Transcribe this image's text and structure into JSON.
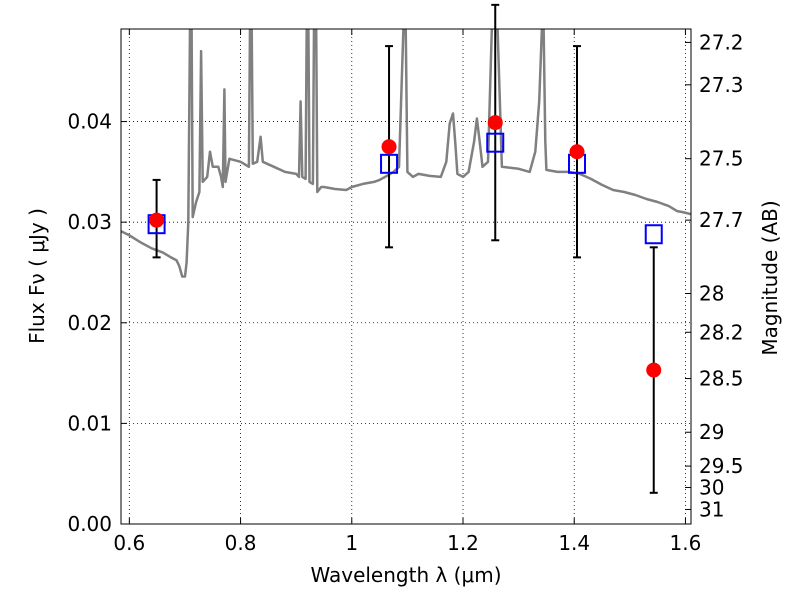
{
  "chart_data": {
    "type": "scatter",
    "xlabel": "Wavelength  λ (μm)",
    "ylabel": "Flux  Fν  ( μJy )",
    "y2label": "Magnitude (AB)",
    "xlim": [
      0.585,
      1.61
    ],
    "ylim": [
      0.0,
      0.0492
    ],
    "xticks": [
      {
        "v": 0.6,
        "label": "0.6"
      },
      {
        "v": 0.8,
        "label": "0.8"
      },
      {
        "v": 1.0,
        "label": "1"
      },
      {
        "v": 1.2,
        "label": "1.2"
      },
      {
        "v": 1.4,
        "label": "1.4"
      },
      {
        "v": 1.6,
        "label": "1.6"
      }
    ],
    "yticks": [
      {
        "v": 0.0,
        "label": "0.00"
      },
      {
        "v": 0.01,
        "label": "0.01"
      },
      {
        "v": 0.02,
        "label": "0.02"
      },
      {
        "v": 0.03,
        "label": "0.03"
      },
      {
        "v": 0.04,
        "label": "0.04"
      }
    ],
    "magnitude_ticks": [
      {
        "mag": 27.2,
        "label": "27.2"
      },
      {
        "mag": 27.3,
        "label": "27.3"
      },
      {
        "mag": 27.5,
        "label": "27.5"
      },
      {
        "mag": 27.7,
        "label": "27.7"
      },
      {
        "mag": 28.0,
        "label": "28"
      },
      {
        "mag": 28.2,
        "label": "28.2"
      },
      {
        "mag": 28.5,
        "label": "28.5"
      },
      {
        "mag": 29.0,
        "label": "29"
      },
      {
        "mag": 29.5,
        "label": "29.5"
      },
      {
        "mag": 30.0,
        "label": "30"
      },
      {
        "mag": 31.0,
        "label": "31"
      }
    ],
    "grid": "dotted",
    "colors": {
      "observed": "#ff0000",
      "model": "#0000ff",
      "errorbar": "#000000",
      "spectrum": "#808080"
    },
    "observed_points": [
      {
        "x": 0.649,
        "y": 0.0302,
        "err_low": 0.0037,
        "err_high": 0.004
      },
      {
        "x": 1.067,
        "y": 0.0375,
        "err_low": 0.01,
        "err_high": 0.01
      },
      {
        "x": 1.258,
        "y": 0.0399,
        "err_low": 0.0117,
        "err_high": 0.0117
      },
      {
        "x": 1.405,
        "y": 0.037,
        "err_low": 0.0105,
        "err_high": 0.0105
      },
      {
        "x": 1.543,
        "y": 0.0153,
        "err_low": 0.0122,
        "err_high": 0.0122
      }
    ],
    "model_points": [
      {
        "x": 0.649,
        "y": 0.0298
      },
      {
        "x": 1.067,
        "y": 0.0358
      },
      {
        "x": 1.258,
        "y": 0.0379
      },
      {
        "x": 1.405,
        "y": 0.0358
      },
      {
        "x": 1.543,
        "y": 0.0288
      }
    ],
    "spectrum": [
      [
        0.585,
        0.0291
      ],
      [
        0.6,
        0.0287
      ],
      [
        0.62,
        0.028
      ],
      [
        0.64,
        0.0274
      ],
      [
        0.66,
        0.027
      ],
      [
        0.675,
        0.0265
      ],
      [
        0.685,
        0.0262
      ],
      [
        0.69,
        0.0256
      ],
      [
        0.695,
        0.0246
      ],
      [
        0.7,
        0.0246
      ],
      [
        0.703,
        0.026
      ],
      [
        0.706,
        0.03
      ],
      [
        0.709,
        0.0495
      ],
      [
        0.712,
        0.0495
      ],
      [
        0.714,
        0.0305
      ],
      [
        0.72,
        0.032
      ],
      [
        0.726,
        0.033
      ],
      [
        0.729,
        0.047
      ],
      [
        0.732,
        0.034
      ],
      [
        0.74,
        0.0345
      ],
      [
        0.745,
        0.037
      ],
      [
        0.75,
        0.0355
      ],
      [
        0.76,
        0.0355
      ],
      [
        0.765,
        0.0345
      ],
      [
        0.768,
        0.0335
      ],
      [
        0.771,
        0.0432
      ],
      [
        0.773,
        0.034
      ],
      [
        0.78,
        0.0363
      ],
      [
        0.8,
        0.036
      ],
      [
        0.815,
        0.0355
      ],
      [
        0.817,
        0.0495
      ],
      [
        0.82,
        0.0495
      ],
      [
        0.822,
        0.0358
      ],
      [
        0.83,
        0.036
      ],
      [
        0.836,
        0.0385
      ],
      [
        0.84,
        0.036
      ],
      [
        0.86,
        0.0355
      ],
      [
        0.88,
        0.035
      ],
      [
        0.9,
        0.0348
      ],
      [
        0.905,
        0.0345
      ],
      [
        0.908,
        0.042
      ],
      [
        0.911,
        0.0345
      ],
      [
        0.917,
        0.0343
      ],
      [
        0.919,
        0.0495
      ],
      [
        0.922,
        0.0495
      ],
      [
        0.924,
        0.034
      ],
      [
        0.93,
        0.0338
      ],
      [
        0.932,
        0.0495
      ],
      [
        0.936,
        0.0495
      ],
      [
        0.938,
        0.033
      ],
      [
        0.945,
        0.0335
      ],
      [
        0.95,
        0.0335
      ],
      [
        0.97,
        0.0333
      ],
      [
        0.99,
        0.0332
      ],
      [
        1.0,
        0.0335
      ],
      [
        1.02,
        0.0338
      ],
      [
        1.04,
        0.034
      ],
      [
        1.05,
        0.0342
      ],
      [
        1.06,
        0.0345
      ],
      [
        1.075,
        0.035
      ],
      [
        1.085,
        0.0355
      ],
      [
        1.093,
        0.0495
      ],
      [
        1.097,
        0.0495
      ],
      [
        1.1,
        0.035
      ],
      [
        1.11,
        0.0345
      ],
      [
        1.12,
        0.0348
      ],
      [
        1.14,
        0.0346
      ],
      [
        1.16,
        0.0345
      ],
      [
        1.17,
        0.036
      ],
      [
        1.176,
        0.0398
      ],
      [
        1.182,
        0.0408
      ],
      [
        1.186,
        0.038
      ],
      [
        1.19,
        0.0348
      ],
      [
        1.2,
        0.0345
      ],
      [
        1.21,
        0.035
      ],
      [
        1.22,
        0.038
      ],
      [
        1.225,
        0.0403
      ],
      [
        1.23,
        0.038
      ],
      [
        1.235,
        0.0355
      ],
      [
        1.245,
        0.036
      ],
      [
        1.252,
        0.0495
      ],
      [
        1.262,
        0.0495
      ],
      [
        1.27,
        0.0355
      ],
      [
        1.3,
        0.0353
      ],
      [
        1.32,
        0.035
      ],
      [
        1.33,
        0.037
      ],
      [
        1.337,
        0.042
      ],
      [
        1.342,
        0.0495
      ],
      [
        1.345,
        0.0495
      ],
      [
        1.348,
        0.038
      ],
      [
        1.35,
        0.0352
      ],
      [
        1.37,
        0.035
      ],
      [
        1.39,
        0.035
      ],
      [
        1.41,
        0.0348
      ],
      [
        1.43,
        0.0343
      ],
      [
        1.45,
        0.0337
      ],
      [
        1.47,
        0.0332
      ],
      [
        1.49,
        0.033
      ],
      [
        1.51,
        0.0327
      ],
      [
        1.53,
        0.0323
      ],
      [
        1.55,
        0.032
      ],
      [
        1.57,
        0.0316
      ],
      [
        1.585,
        0.0311
      ],
      [
        1.595,
        0.031
      ],
      [
        1.61,
        0.0308
      ]
    ]
  }
}
